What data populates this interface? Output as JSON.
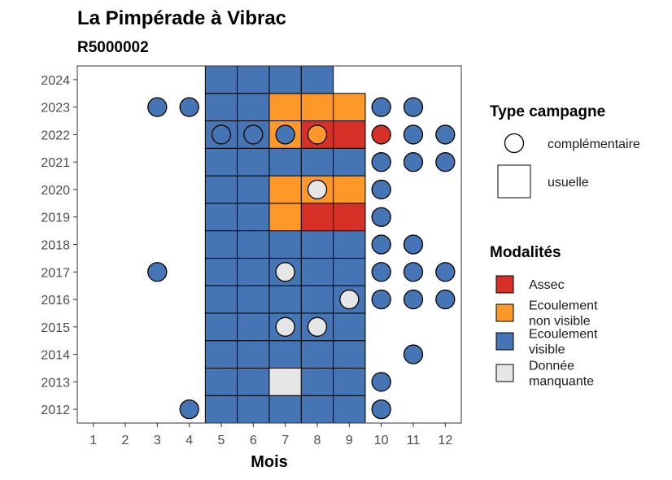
{
  "chart_data": {
    "type": "heatmap",
    "title": "La Pimpérade à Vibrac",
    "subtitle": "R5000002",
    "xlabel": "Mois",
    "ylabel": "",
    "x_ticks": [
      1,
      2,
      3,
      4,
      5,
      6,
      7,
      8,
      9,
      10,
      11,
      12
    ],
    "y_ticks": [
      2012,
      2013,
      2014,
      2015,
      2016,
      2017,
      2018,
      2019,
      2020,
      2021,
      2022,
      2023,
      2024
    ],
    "xlim": [
      0.5,
      12.5
    ],
    "ylim": [
      2011.5,
      2024.5
    ],
    "grid": false,
    "legend_position": "right",
    "colors": {
      "Assec": "#d73027",
      "Ecoulement non visible": "#fe9929",
      "Ecoulement visible": "#4575b4",
      "Donnée manquante": "#e6e6e6"
    },
    "legend": {
      "type_title": "Type campagne",
      "types": [
        {
          "key": "complementaire",
          "label": "complémentaire",
          "shape": "circle"
        },
        {
          "key": "usuelle",
          "label": "usuelle",
          "shape": "square"
        }
      ],
      "modalites_title": "Modalités",
      "modalites": [
        {
          "key": "Assec",
          "lines": [
            "Assec"
          ]
        },
        {
          "key": "Ecoulement non visible",
          "lines": [
            "Ecoulement",
            "non visible"
          ]
        },
        {
          "key": "Ecoulement visible",
          "lines": [
            "Ecoulement",
            "visible"
          ]
        },
        {
          "key": "Donnée manquante",
          "lines": [
            "Donnée",
            "manquante"
          ]
        }
      ]
    },
    "usuelle": {
      "2012": [
        "EV",
        "EV",
        "EV",
        "EV",
        "EV"
      ],
      "2013": [
        "EV",
        "EV",
        "DM",
        "EV",
        "EV"
      ],
      "2014": [
        "EV",
        "EV",
        "EV",
        "EV",
        "EV"
      ],
      "2015": [
        "EV",
        "EV",
        "EV",
        "EV",
        "EV"
      ],
      "2016": [
        "EV",
        "EV",
        "EV",
        "EV",
        "EV"
      ],
      "2017": [
        "EV",
        "EV",
        "EV",
        "EV",
        "EV"
      ],
      "2018": [
        "EV",
        "EV",
        "EV",
        "EV",
        "EV"
      ],
      "2019": [
        "EV",
        "EV",
        "ENV",
        "A",
        "A"
      ],
      "2020": [
        "EV",
        "EV",
        "ENV",
        "ENV",
        "ENV"
      ],
      "2021": [
        "EV",
        "EV",
        "EV",
        "EV",
        "EV"
      ],
      "2022": [
        "EV",
        "EV",
        "ENV",
        "A",
        "A"
      ],
      "2023": [
        "EV",
        "EV",
        "ENV",
        "ENV",
        "ENV"
      ],
      "2024": [
        "EV",
        "EV",
        "EV",
        "EV",
        null
      ]
    },
    "usuelle_months": [
      5,
      6,
      7,
      8,
      9
    ],
    "complementaire": [
      {
        "year": 2012,
        "month": 4,
        "m": "EV"
      },
      {
        "year": 2012,
        "month": 10,
        "m": "EV"
      },
      {
        "year": 2013,
        "month": 10,
        "m": "EV"
      },
      {
        "year": 2014,
        "month": 11,
        "m": "EV"
      },
      {
        "year": 2015,
        "month": 7,
        "m": "DM"
      },
      {
        "year": 2015,
        "month": 8,
        "m": "DM"
      },
      {
        "year": 2016,
        "month": 9,
        "m": "DM"
      },
      {
        "year": 2016,
        "month": 10,
        "m": "EV"
      },
      {
        "year": 2016,
        "month": 11,
        "m": "EV"
      },
      {
        "year": 2016,
        "month": 12,
        "m": "EV"
      },
      {
        "year": 2017,
        "month": 3,
        "m": "EV"
      },
      {
        "year": 2017,
        "month": 7,
        "m": "DM"
      },
      {
        "year": 2017,
        "month": 10,
        "m": "EV"
      },
      {
        "year": 2017,
        "month": 11,
        "m": "EV"
      },
      {
        "year": 2017,
        "month": 12,
        "m": "EV"
      },
      {
        "year": 2018,
        "month": 10,
        "m": "EV"
      },
      {
        "year": 2018,
        "month": 11,
        "m": "EV"
      },
      {
        "year": 2019,
        "month": 10,
        "m": "EV"
      },
      {
        "year": 2020,
        "month": 8,
        "m": "DM"
      },
      {
        "year": 2020,
        "month": 10,
        "m": "EV"
      },
      {
        "year": 2021,
        "month": 10,
        "m": "EV"
      },
      {
        "year": 2021,
        "month": 11,
        "m": "EV"
      },
      {
        "year": 2021,
        "month": 12,
        "m": "EV"
      },
      {
        "year": 2022,
        "month": 5,
        "m": "EV"
      },
      {
        "year": 2022,
        "month": 6,
        "m": "EV"
      },
      {
        "year": 2022,
        "month": 7,
        "m": "EV"
      },
      {
        "year": 2022,
        "month": 8,
        "m": "ENV"
      },
      {
        "year": 2022,
        "month": 10,
        "m": "A"
      },
      {
        "year": 2022,
        "month": 11,
        "m": "EV"
      },
      {
        "year": 2022,
        "month": 12,
        "m": "EV"
      },
      {
        "year": 2023,
        "month": 3,
        "m": "EV"
      },
      {
        "year": 2023,
        "month": 4,
        "m": "EV"
      },
      {
        "year": 2023,
        "month": 10,
        "m": "EV"
      },
      {
        "year": 2023,
        "month": 11,
        "m": "EV"
      }
    ],
    "codes": {
      "EV": "Ecoulement visible",
      "ENV": "Ecoulement non visible",
      "A": "Assec",
      "DM": "Donnée manquante"
    }
  }
}
